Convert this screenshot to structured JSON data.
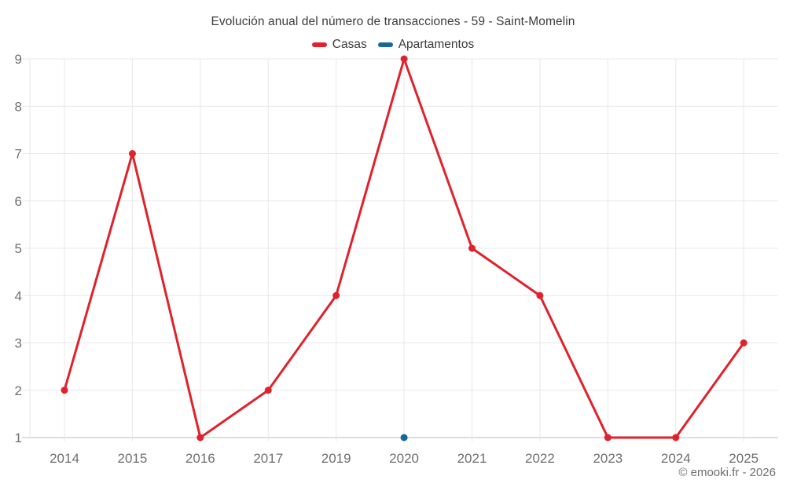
{
  "title": "Evolución anual del número de transacciones - 59 - Saint-Momelin",
  "attribution": "© emooki.fr - 2026",
  "legend": [
    {
      "id": "casas",
      "label": "Casas",
      "color": "#df222b"
    },
    {
      "id": "apartamentos",
      "label": "Apartamentos",
      "color": "#16689b"
    }
  ],
  "colors": {
    "casas": "#df222b",
    "apartamentos": "#16689b",
    "gridline": "#e8e8e8",
    "axis_baseline": "#c9c9c9",
    "tick_label": "#707070",
    "title_text": "#3c3c3c"
  },
  "chart_data": {
    "type": "line",
    "title": "Evolución anual del número de transacciones - 59 - Saint-Momelin",
    "categories": [
      "2014",
      "2015",
      "2016",
      "2017",
      "2019",
      "2020",
      "2021",
      "2022",
      "2023",
      "2024",
      "2025"
    ],
    "series": [
      {
        "name": "Casas",
        "color": "#df222b",
        "values": [
          2,
          7,
          1,
          2,
          4,
          9,
          5,
          4,
          1,
          1,
          3
        ]
      },
      {
        "name": "Apartamentos",
        "color": "#16689b",
        "values": [
          null,
          null,
          null,
          null,
          null,
          1,
          null,
          null,
          null,
          null,
          null
        ]
      }
    ],
    "xlabel": "",
    "ylabel": "",
    "ylim": [
      1,
      9
    ],
    "yticks": [
      1,
      2,
      3,
      4,
      5,
      6,
      7,
      8,
      9
    ],
    "grid": true,
    "legend_position": "top"
  }
}
